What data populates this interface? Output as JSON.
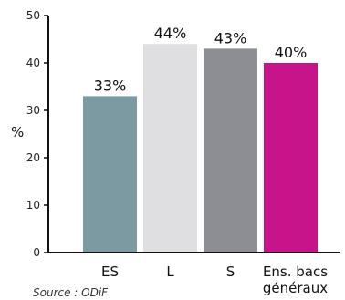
{
  "chart_data": {
    "type": "bar",
    "categories": [
      [
        "ES"
      ],
      [
        "L"
      ],
      [
        "S"
      ],
      [
        "Ens. bacs",
        "généraux"
      ]
    ],
    "values": [
      33,
      44,
      43,
      40
    ],
    "data_labels": [
      "33%",
      "44%",
      "43%",
      "40%"
    ],
    "colors": [
      "#7b9aa1",
      "#dfdfe1",
      "#8c8e93",
      "#c8148a"
    ],
    "title": "",
    "xlabel": "",
    "ylabel": "%",
    "ylim": [
      0,
      50
    ],
    "yticks": [
      0,
      10,
      20,
      30,
      40,
      50
    ],
    "grid": false,
    "source": "Source : ODiF"
  }
}
